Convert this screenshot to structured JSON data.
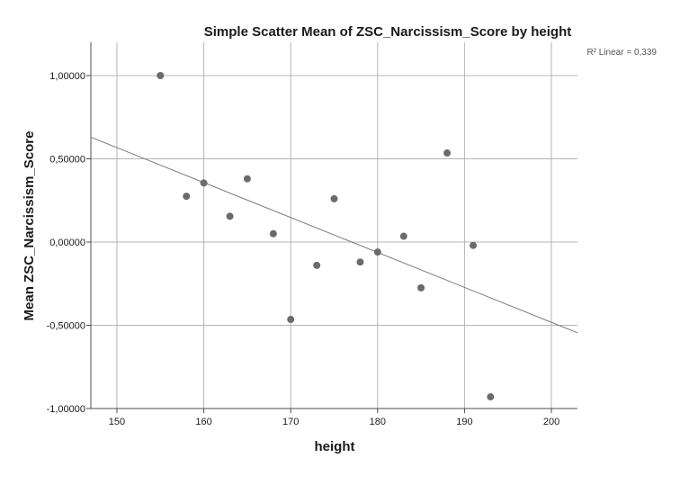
{
  "chart_data": {
    "type": "scatter",
    "title": "Simple Scatter Mean of ZSC_Narcissism_Score by height",
    "xlabel": "height",
    "ylabel": "Mean ZSC_Narcissism_Score",
    "xlim": [
      147,
      203
    ],
    "ylim": [
      -1.0,
      1.2
    ],
    "x_ticks": [
      150,
      160,
      170,
      180,
      190,
      200
    ],
    "x_tick_labels": [
      "150",
      "160",
      "170",
      "180",
      "190",
      "200"
    ],
    "y_ticks": [
      1.0,
      0.5,
      0.0,
      -0.5,
      -1.0
    ],
    "y_tick_labels": [
      "1,00000",
      "0,50000",
      "0,00000",
      "-0,50000",
      "-1,00000"
    ],
    "grid": true,
    "points": [
      {
        "x": 155,
        "y": 1.0
      },
      {
        "x": 158,
        "y": 0.275
      },
      {
        "x": 160,
        "y": 0.355
      },
      {
        "x": 163,
        "y": 0.155
      },
      {
        "x": 165,
        "y": 0.38
      },
      {
        "x": 168,
        "y": 0.05
      },
      {
        "x": 170,
        "y": -0.465
      },
      {
        "x": 173,
        "y": -0.14
      },
      {
        "x": 175,
        "y": 0.26
      },
      {
        "x": 178,
        "y": -0.12
      },
      {
        "x": 180,
        "y": -0.06
      },
      {
        "x": 183,
        "y": 0.035
      },
      {
        "x": 185,
        "y": -0.275
      },
      {
        "x": 188,
        "y": 0.535
      },
      {
        "x": 191,
        "y": -0.02
      },
      {
        "x": 193,
        "y": -0.93
      }
    ],
    "fit_line": {
      "x": [
        147,
        203
      ],
      "y": [
        0.63,
        -0.545
      ]
    },
    "annotation": "R² Linear = 0,339",
    "colors": {
      "point": "#6b6b6b",
      "fit_line": "#7a7a7a",
      "grid": "#b5b5b5",
      "axis": "#4d4d4d"
    }
  }
}
